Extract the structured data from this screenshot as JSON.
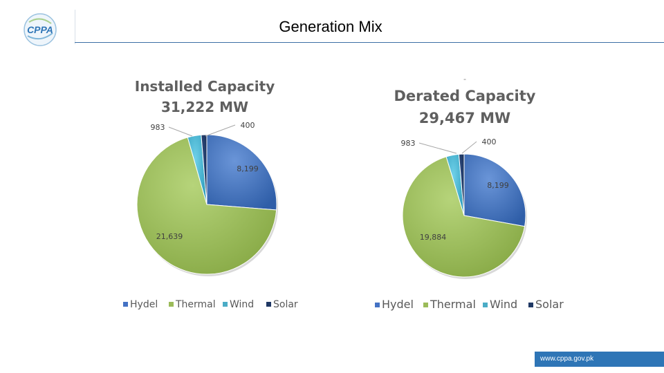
{
  "header": {
    "title": "Generation Mix",
    "logo_text": "CPPA"
  },
  "footer": {
    "url": "www.cppa.gov.pk"
  },
  "colors": {
    "hydel": "#4472c4",
    "thermal": "#9bbb59",
    "wind": "#4bacc6",
    "solar": "#1f3864",
    "accent": "#2e75b6"
  },
  "chart_data": [
    {
      "type": "pie",
      "title": "Installed Capacity",
      "subtitle": "31,222 MW",
      "categories": [
        "Hydel",
        "Thermal",
        "Wind",
        "Solar"
      ],
      "values": [
        8199,
        21639,
        983,
        400
      ],
      "labels": [
        "8,199",
        "21,639",
        "983",
        "400"
      ],
      "legend_position": "bottom"
    },
    {
      "type": "pie",
      "title": "Derated Capacity",
      "subtitle": "29,467 MW",
      "categories": [
        "Hydel",
        "Thermal",
        "Wind",
        "Solar"
      ],
      "values": [
        8199,
        19884,
        983,
        400
      ],
      "labels": [
        "8,199",
        "19,884",
        "983",
        "400"
      ],
      "legend_position": "bottom"
    }
  ]
}
